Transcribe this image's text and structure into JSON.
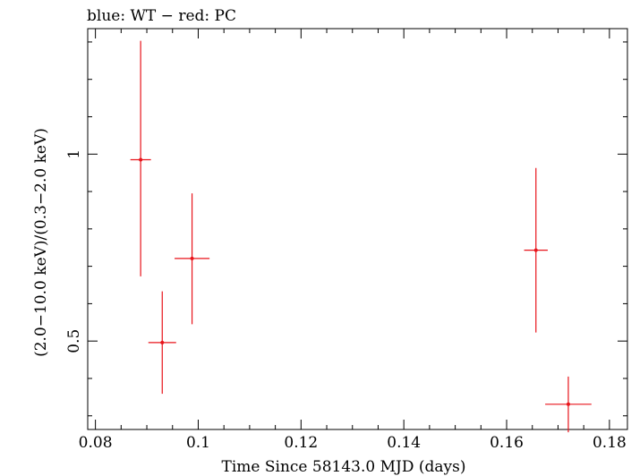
{
  "chart_data": {
    "type": "scatter",
    "title": "blue: WT − red: PC",
    "xlabel": "Time Since 58143.0 MJD (days)",
    "ylabel": "(2.0−10.0 keV)/(0.3−2.0 keV)",
    "xlim": [
      0.0785,
      0.1835
    ],
    "ylim": [
      0.2635,
      1.3357
    ],
    "xticks": [
      0.08,
      0.1,
      0.12,
      0.14,
      0.16,
      0.18
    ],
    "xtick_labels": [
      "0.08",
      "0.1",
      "0.12",
      "0.14",
      "0.16",
      "0.18"
    ],
    "yticks": [
      0.5,
      1
    ],
    "ytick_labels": [
      "0.5",
      "1"
    ],
    "series": [
      {
        "color": "#e8141b",
        "points": [
          {
            "x": 0.0888,
            "y": 0.985,
            "xerr": 0.002,
            "ylo": 0.673,
            "yhi": 1.303
          },
          {
            "x": 0.093,
            "y": 0.496,
            "xerr": 0.0027,
            "ylo": 0.359,
            "yhi": 0.633
          },
          {
            "x": 0.0988,
            "y": 0.721,
            "xerr": 0.0034,
            "ylo": 0.545,
            "yhi": 0.895
          },
          {
            "x": 0.1657,
            "y": 0.743,
            "xerr": 0.0023,
            "ylo": 0.523,
            "yhi": 0.963
          },
          {
            "x": 0.172,
            "y": 0.331,
            "xerr": 0.0045,
            "ylo": 0.256,
            "yhi": 0.405
          }
        ]
      }
    ]
  }
}
